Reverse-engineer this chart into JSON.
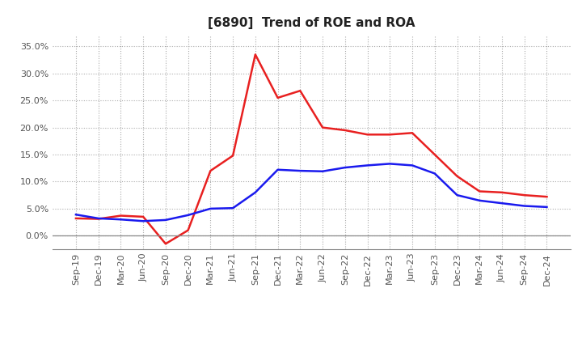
{
  "title": "[6890]  Trend of ROE and ROA",
  "x_labels": [
    "Sep-19",
    "Dec-19",
    "Mar-20",
    "Jun-20",
    "Sep-20",
    "Dec-20",
    "Mar-21",
    "Jun-21",
    "Sep-21",
    "Dec-21",
    "Mar-22",
    "Jun-22",
    "Sep-22",
    "Dec-22",
    "Mar-23",
    "Jun-23",
    "Sep-23",
    "Dec-23",
    "Mar-24",
    "Jun-24",
    "Sep-24",
    "Dec-24"
  ],
  "roe": [
    3.2,
    3.1,
    3.7,
    3.5,
    -1.5,
    1.0,
    12.0,
    14.8,
    33.5,
    25.5,
    26.8,
    20.0,
    19.5,
    18.7,
    18.7,
    19.0,
    15.0,
    11.0,
    8.2,
    8.0,
    7.5,
    7.2
  ],
  "roa": [
    3.9,
    3.2,
    3.0,
    2.7,
    2.9,
    3.8,
    5.0,
    5.1,
    8.0,
    12.2,
    12.0,
    11.9,
    12.6,
    13.0,
    13.3,
    13.0,
    11.5,
    7.5,
    6.5,
    6.0,
    5.5,
    5.3
  ],
  "roe_color": "#e82020",
  "roa_color": "#1a1aee",
  "ylim": [
    -2.5,
    37
  ],
  "yticks": [
    0.0,
    5.0,
    10.0,
    15.0,
    20.0,
    25.0,
    30.0,
    35.0
  ],
  "background_color": "#ffffff",
  "grid_color": "#aaaaaa",
  "title_fontsize": 11,
  "axis_fontsize": 8,
  "legend_fontsize": 9,
  "tick_color": "#555555"
}
